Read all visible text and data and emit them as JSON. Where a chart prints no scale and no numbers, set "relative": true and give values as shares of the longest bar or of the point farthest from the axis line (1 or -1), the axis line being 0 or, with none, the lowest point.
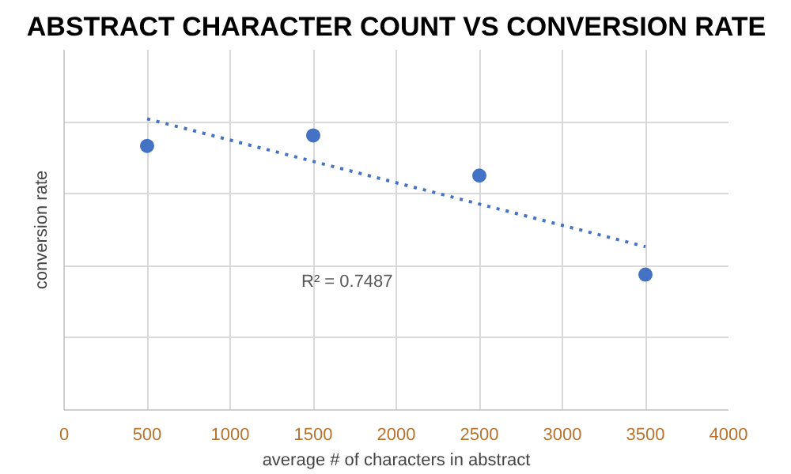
{
  "chart_data": {
    "type": "scatter",
    "title": "ABSTRACT CHARACTER COUNT VS CONVERSION RATE",
    "xlabel": "average # of characters in abstract",
    "ylabel": "conversion rate",
    "relative": true,
    "x": [
      500,
      1500,
      2500,
      3500
    ],
    "xlim": [
      0,
      4000
    ],
    "xticks": [
      0,
      500,
      1000,
      1500,
      2000,
      2500,
      3000,
      3500,
      4000
    ],
    "grid": true,
    "tick_labels": "x",
    "marker": "circle",
    "series": [
      {
        "color": "#4472c4",
        "values": [
          0.907,
          0.943,
          0.805,
          0.465
        ]
      },
      {
        "type": "line",
        "color": "#4472c4",
        "line_style": "dotted",
        "marker": "none",
        "x": [
          500,
          3500
        ],
        "values": [
          1,
          0.561
        ]
      }
    ],
    "annotations": [
      "R² = 0.7487"
    ]
  }
}
